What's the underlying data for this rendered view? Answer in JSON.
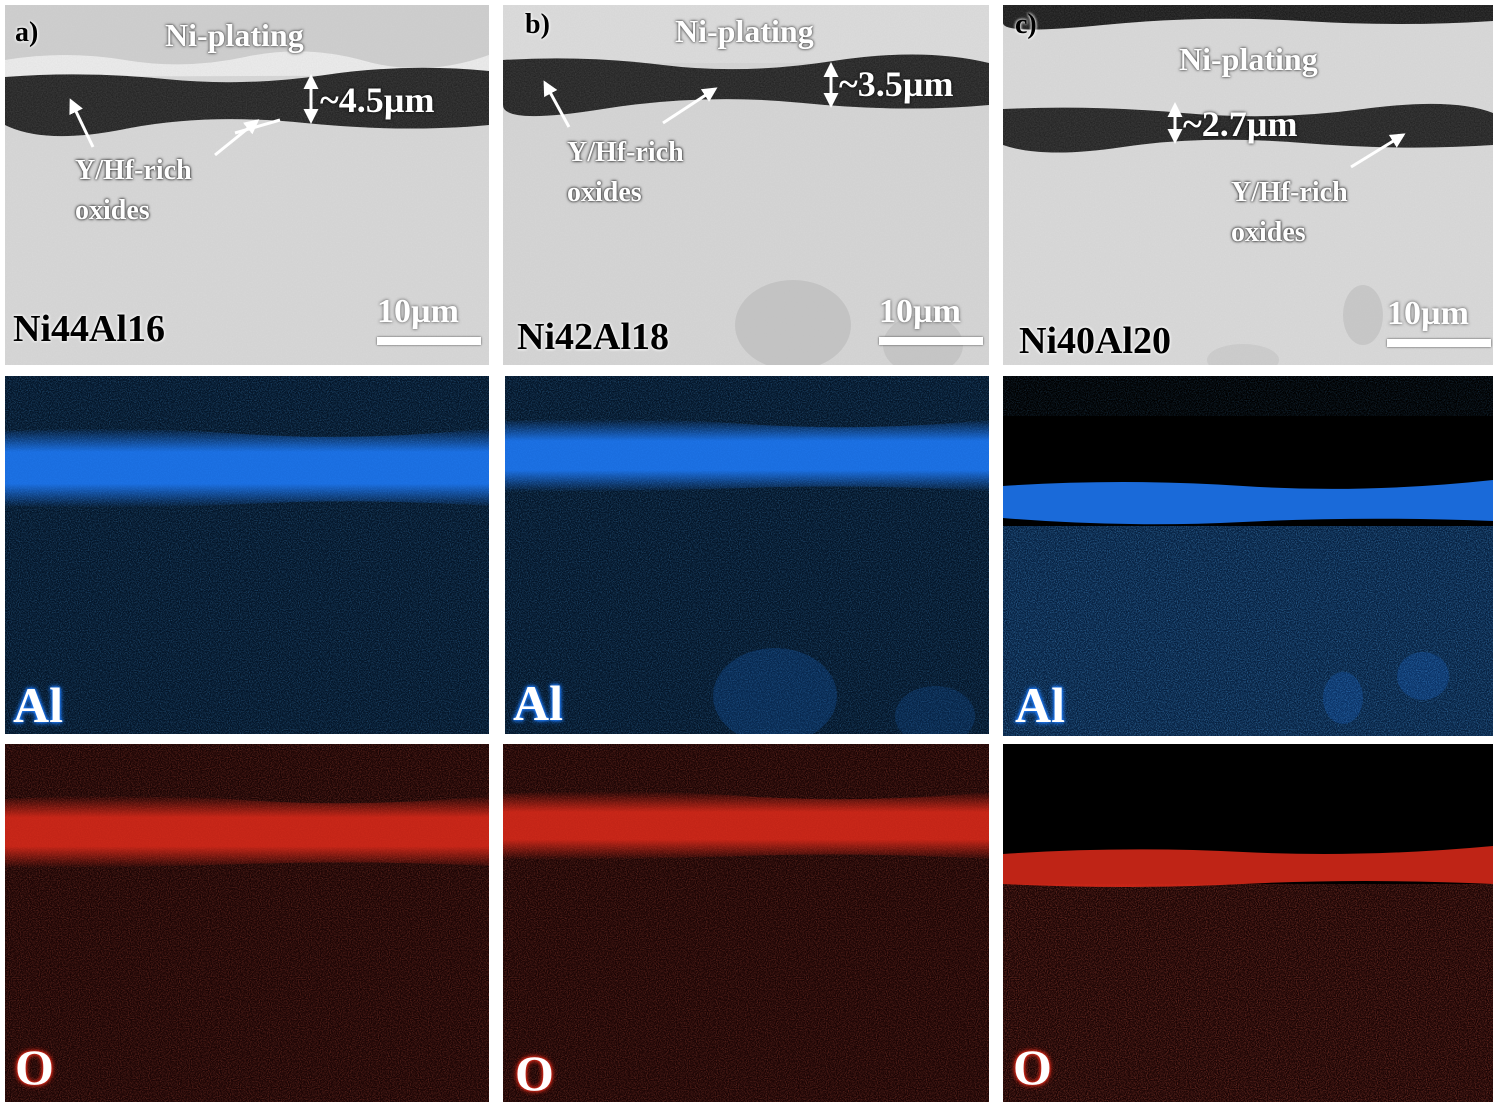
{
  "figure": {
    "columns": [
      {
        "letter": "a)",
        "plating": "Ni-plating",
        "thickness": "~4.5µm",
        "oxide_line1": "Y/Hf-rich",
        "oxide_line2": "oxides",
        "alloy": "Ni44Al16",
        "scale": "10µm"
      },
      {
        "letter": "b)",
        "plating": "Ni-plating",
        "thickness": "~3.5µm",
        "oxide_line1": "Y/Hf-rich",
        "oxide_line2": "oxides",
        "alloy": "Ni42Al18",
        "scale": "10µm"
      },
      {
        "letter": "c)",
        "plating": "Ni-plating",
        "thickness": "~2.7µm",
        "oxide_line1": "Y/Hf-rich",
        "oxide_line2": "oxides",
        "alloy": "Ni40Al20",
        "scale": "10µm"
      }
    ],
    "al_label": "Al",
    "o_label": "O",
    "colors": {
      "al_map": "#1e7dff",
      "o_map": "#e12a1a",
      "sem_substrate": "#d6d6d6",
      "sem_oxide": "#1a1a1a"
    }
  }
}
